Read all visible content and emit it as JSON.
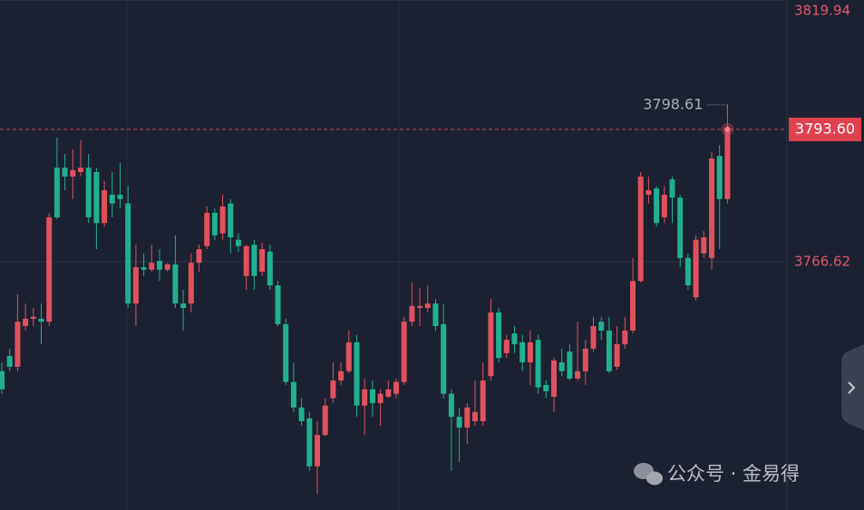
{
  "chart_data": {
    "type": "candlestick",
    "open": [
      3744.3,
      3747.4,
      3745.2,
      3753.5,
      3755.0,
      3755.0,
      3754.4,
      3785.8,
      3785.8,
      3784.0,
      3784.9,
      3785.8,
      3784.9,
      3774.5,
      3780.3,
      3780.3,
      3778.5,
      3758.1,
      3765.5,
      3765.0,
      3766.8,
      3765.0,
      3766.1,
      3758.1,
      3758.1,
      3766.4,
      3769.8,
      3776.6,
      3772.4,
      3778.5,
      3771.1,
      3763.7,
      3770.1,
      3764.6,
      3768.7,
      3761.8,
      3753.9,
      3742.1,
      3736.9,
      3734.7,
      3724.9,
      3731.3,
      3738.8,
      3742.4,
      3744.3,
      3750.2,
      3737.3,
      3740.6,
      3737.8,
      3739.1,
      3739.7,
      3742.1,
      3754.4,
      3757.2,
      3757.2,
      3758.1,
      3753.9,
      3739.7,
      3735.0,
      3732.8,
      3734.1,
      3734.1,
      3743.3,
      3756.3,
      3748.0,
      3752.0,
      3750.2,
      3746.1,
      3750.7,
      3741.5,
      3739.1,
      3746.1,
      3748.3,
      3742.8,
      3744.3,
      3748.9,
      3754.4,
      3752.6,
      3745.2,
      3749.8,
      3752.6,
      3762.7,
      3780.3,
      3781.6,
      3775.7,
      3783.4,
      3779.7,
      3767.4,
      3759.4,
      3768.3,
      3767.4,
      3788.2,
      3779.4
    ],
    "high": [
      3746.1,
      3748.9,
      3760.0,
      3758.1,
      3757.2,
      3758.1,
      3776.6,
      3791.9,
      3788.6,
      3789.5,
      3791.4,
      3788.6,
      3785.8,
      3783.1,
      3784.9,
      3786.8,
      3782.1,
      3770.1,
      3768.3,
      3770.1,
      3769.2,
      3766.4,
      3772.0,
      3760.9,
      3768.3,
      3770.1,
      3777.9,
      3777.5,
      3780.3,
      3779.4,
      3772.4,
      3770.1,
      3771.1,
      3770.5,
      3770.1,
      3762.7,
      3755.0,
      3746.1,
      3738.8,
      3736.0,
      3734.1,
      3738.8,
      3746.1,
      3746.1,
      3752.6,
      3751.7,
      3742.8,
      3742.4,
      3740.6,
      3742.4,
      3742.8,
      3755.4,
      3762.4,
      3761.3,
      3761.8,
      3759.0,
      3758.1,
      3740.6,
      3736.9,
      3737.8,
      3742.4,
      3746.1,
      3759.0,
      3757.2,
      3751.7,
      3753.5,
      3751.7,
      3752.6,
      3751.7,
      3742.4,
      3747.0,
      3748.9,
      3749.8,
      3754.4,
      3750.7,
      3755.4,
      3755.4,
      3755.4,
      3753.5,
      3755.4,
      3767.4,
      3784.9,
      3784.0,
      3782.1,
      3782.1,
      3784.0,
      3780.3,
      3768.3,
      3772.0,
      3772.9,
      3789.0,
      3790.4,
      3798.61
    ],
    "low": [
      3739.7,
      3744.3,
      3744.3,
      3752.6,
      3753.5,
      3749.8,
      3753.5,
      3775.3,
      3781.2,
      3779.4,
      3784.0,
      3774.5,
      3769.2,
      3773.8,
      3775.7,
      3777.5,
      3757.2,
      3753.5,
      3763.7,
      3764.6,
      3762.7,
      3764.6,
      3757.2,
      3752.6,
      3756.3,
      3764.6,
      3769.2,
      3771.1,
      3771.1,
      3768.3,
      3768.7,
      3760.9,
      3760.9,
      3763.7,
      3760.9,
      3753.5,
      3741.5,
      3736.0,
      3733.2,
      3724.0,
      3719.3,
      3731.0,
      3737.8,
      3741.5,
      3743.9,
      3735.0,
      3731.3,
      3735.0,
      3733.2,
      3738.8,
      3738.8,
      3741.5,
      3753.5,
      3753.5,
      3756.3,
      3752.6,
      3738.8,
      3724.0,
      3725.8,
      3729.5,
      3733.2,
      3733.2,
      3742.4,
      3746.1,
      3747.0,
      3748.0,
      3744.3,
      3741.5,
      3739.7,
      3738.8,
      3736.0,
      3743.3,
      3742.4,
      3742.4,
      3741.5,
      3748.3,
      3750.7,
      3743.9,
      3744.6,
      3748.9,
      3752.0,
      3762.4,
      3778.5,
      3773.8,
      3774.5,
      3774.5,
      3765.5,
      3760.9,
      3758.7,
      3767.4,
      3765.0,
      3769.2,
      3778.5
    ],
    "close": [
      3740.6,
      3745.2,
      3754.4,
      3755.0,
      3755.4,
      3754.4,
      3775.7,
      3775.7,
      3784.0,
      3785.3,
      3785.8,
      3775.7,
      3774.5,
      3781.2,
      3778.5,
      3779.4,
      3758.1,
      3765.5,
      3765.0,
      3766.4,
      3765.0,
      3766.1,
      3758.1,
      3757.2,
      3766.4,
      3769.2,
      3776.6,
      3772.0,
      3777.9,
      3771.6,
      3769.8,
      3769.8,
      3763.7,
      3769.2,
      3761.8,
      3753.9,
      3742.1,
      3736.9,
      3734.1,
      3724.9,
      3731.3,
      3737.3,
      3742.4,
      3744.3,
      3750.2,
      3737.3,
      3740.6,
      3737.8,
      3739.7,
      3740.6,
      3742.1,
      3754.4,
      3757.6,
      3757.6,
      3758.1,
      3753.5,
      3739.7,
      3735.0,
      3732.8,
      3736.9,
      3736.0,
      3742.4,
      3756.3,
      3747.0,
      3750.7,
      3749.8,
      3746.1,
      3750.2,
      3741.0,
      3740.2,
      3746.5,
      3744.3,
      3742.8,
      3744.3,
      3748.9,
      3753.5,
      3752.6,
      3744.3,
      3749.8,
      3752.6,
      3762.7,
      3784.0,
      3781.2,
      3774.5,
      3780.3,
      3779.7,
      3767.4,
      3761.8,
      3771.1,
      3771.6,
      3787.7,
      3779.4,
      3793.6
    ],
    "up_color": "#e0515e",
    "down_color": "#21b08f",
    "ylim": [
      3716,
      3820
    ],
    "yticks": [
      3766.62,
      3819.94
    ],
    "grid": true,
    "last_price": {
      "value": 3793.6,
      "label": "3793.60"
    },
    "watermark": "公众号 · 金易得"
  }
}
